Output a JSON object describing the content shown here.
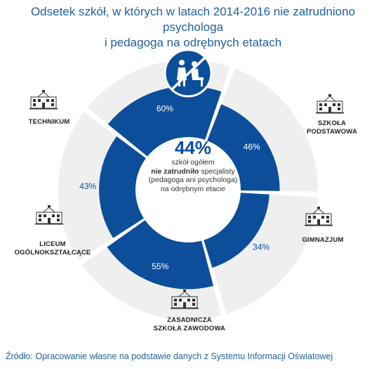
{
  "title": {
    "line1": "Odsetek szkół, w których w latach 2014-2016 nie zatrudniono psychologa",
    "line2": "i pedagoga na odrębnych etatach"
  },
  "center": {
    "value": "44%",
    "line1": "szkół ogółem",
    "bold": "nie zatrudniło",
    "line2_rest": " specjalisty",
    "line3": "(pedagoga ani psychologa)",
    "line4": "na odrębnym etacie"
  },
  "chart_data": {
    "type": "pie",
    "style": "radial segments (donut sectors with length proportional to value)",
    "max": 100,
    "categories": [
      "TECHNIKUM",
      "SZKOŁA PODSTAWOWA",
      "GIMNAZJUM",
      "ZASADNICZA SZKOŁA ZAWODOWA",
      "LICEUM OGÓLNOKSZTAŁCĄCE"
    ],
    "category_lines": [
      [
        "TECHNIKUM"
      ],
      [
        "SZKOŁA",
        "PODSTAWOWA"
      ],
      [
        "GIMNAZJUM"
      ],
      [
        "ZASADNICZA",
        "SZKOŁA ZAWODOWA"
      ],
      [
        "LICEUM",
        "OGÓLNOKSZTAŁCĄCE"
      ]
    ],
    "values": [
      60,
      46,
      34,
      55,
      43
    ],
    "value_labels": [
      "60%",
      "46%",
      "34%",
      "55%",
      "43%"
    ],
    "overall": 44
  },
  "colors": {
    "segment": "#0c4e9a",
    "track": "#efefef",
    "title": "#1f5f9e",
    "value_text": "#0c4e9a",
    "value_text_inside": "#ffffff"
  },
  "icons": {
    "top": "no-specialist-icon",
    "building": "school-building-icon"
  },
  "source": "Źródło: Opracowanie własne na podstawie danych z Systemu Informacji Oświatowej"
}
